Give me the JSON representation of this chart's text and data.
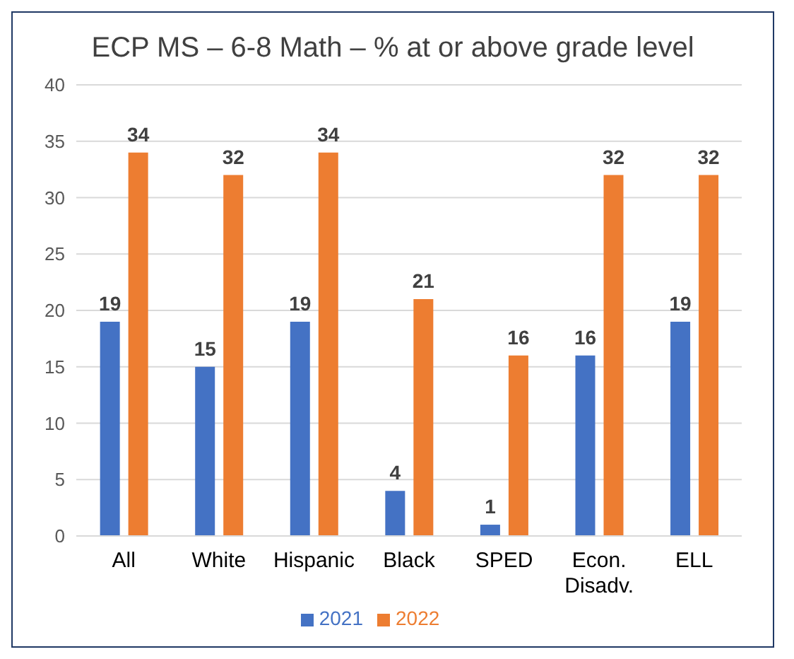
{
  "chart_data": {
    "type": "bar",
    "title": "ECP MS – 6-8 Math – % at or above grade level",
    "categories": [
      "All",
      "White",
      "Hispanic",
      "Black",
      "SPED",
      "Econ. Disadv.",
      "ELL"
    ],
    "series": [
      {
        "name": "2021",
        "color": "#4472c4",
        "values": [
          19,
          15,
          19,
          4,
          1,
          16,
          19
        ]
      },
      {
        "name": "2022",
        "color": "#ed7d31",
        "values": [
          34,
          32,
          34,
          21,
          16,
          32,
          32
        ]
      }
    ],
    "ylim": [
      0,
      40
    ],
    "yticks": [
      0,
      5,
      10,
      15,
      20,
      25,
      30,
      35,
      40
    ],
    "grid": "y",
    "legend": "bottom",
    "data_labels": true
  }
}
